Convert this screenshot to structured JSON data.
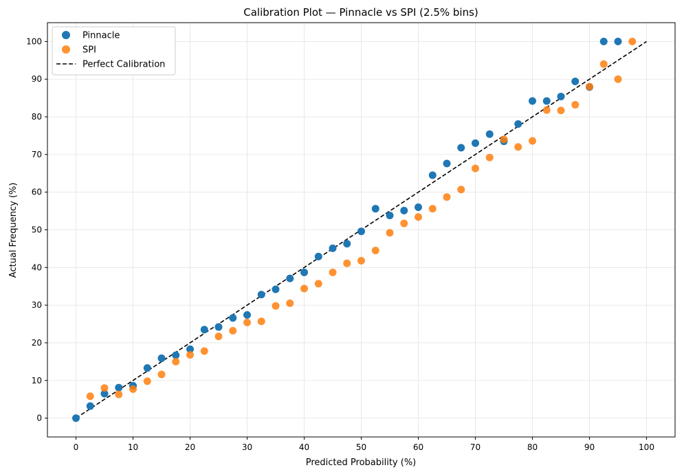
{
  "chart_data": {
    "type": "scatter",
    "title": "Calibration Plot — Pinnacle vs SPI (2.5% bins)",
    "xlabel": "Predicted Probability (%)",
    "ylabel": "Actual Frequency (%)",
    "xlim": [
      -5,
      105
    ],
    "ylim": [
      -5,
      105
    ],
    "xticks": [
      0,
      10,
      20,
      30,
      40,
      50,
      60,
      70,
      80,
      90,
      100
    ],
    "yticks": [
      0,
      10,
      20,
      30,
      40,
      50,
      60,
      70,
      80,
      90,
      100
    ],
    "grid": true,
    "legend_position": "top-left",
    "series": [
      {
        "name": "Pinnacle",
        "color": "#1f77b4",
        "points": [
          [
            0,
            0
          ],
          [
            2.5,
            3.2
          ],
          [
            5,
            6.5
          ],
          [
            7.5,
            8.1
          ],
          [
            10,
            8.6
          ],
          [
            12.5,
            13.3
          ],
          [
            15,
            15.9
          ],
          [
            17.5,
            16.7
          ],
          [
            20,
            18.3
          ],
          [
            22.5,
            23.5
          ],
          [
            25,
            24.2
          ],
          [
            27.5,
            26.6
          ],
          [
            30,
            27.4
          ],
          [
            32.5,
            32.8
          ],
          [
            35,
            34.2
          ],
          [
            37.5,
            37.1
          ],
          [
            40,
            38.7
          ],
          [
            42.5,
            42.9
          ],
          [
            45,
            45.1
          ],
          [
            47.5,
            46.3
          ],
          [
            50,
            49.6
          ],
          [
            52.5,
            55.6
          ],
          [
            55,
            53.8
          ],
          [
            57.5,
            55.1
          ],
          [
            60,
            56.0
          ],
          [
            62.5,
            64.5
          ],
          [
            65,
            67.6
          ],
          [
            67.5,
            71.8
          ],
          [
            70,
            73.0
          ],
          [
            72.5,
            75.4
          ],
          [
            75,
            73.5
          ],
          [
            77.5,
            78.1
          ],
          [
            80,
            84.2
          ],
          [
            82.5,
            84.2
          ],
          [
            85,
            85.4
          ],
          [
            87.5,
            89.4
          ],
          [
            90,
            87.9
          ],
          [
            92.5,
            100
          ],
          [
            95,
            100
          ]
        ]
      },
      {
        "name": "SPI",
        "color": "#ff7f0e",
        "points": [
          [
            2.5,
            5.8
          ],
          [
            5,
            8.0
          ],
          [
            7.5,
            6.3
          ],
          [
            10,
            7.7
          ],
          [
            12.5,
            9.8
          ],
          [
            15,
            11.6
          ],
          [
            17.5,
            15.0
          ],
          [
            20,
            16.8
          ],
          [
            22.5,
            17.8
          ],
          [
            25,
            21.7
          ],
          [
            27.5,
            23.2
          ],
          [
            30,
            25.4
          ],
          [
            32.5,
            25.7
          ],
          [
            35,
            29.8
          ],
          [
            37.5,
            30.5
          ],
          [
            40,
            34.4
          ],
          [
            42.5,
            35.7
          ],
          [
            45,
            38.7
          ],
          [
            47.5,
            41.1
          ],
          [
            50,
            41.8
          ],
          [
            52.5,
            44.5
          ],
          [
            55,
            49.2
          ],
          [
            57.5,
            51.7
          ],
          [
            60,
            53.4
          ],
          [
            62.5,
            55.6
          ],
          [
            65,
            58.7
          ],
          [
            67.5,
            60.7
          ],
          [
            70,
            66.3
          ],
          [
            72.5,
            69.2
          ],
          [
            75,
            74.0
          ],
          [
            77.5,
            72.0
          ],
          [
            80,
            73.6
          ],
          [
            82.5,
            81.8
          ],
          [
            85,
            81.7
          ],
          [
            87.5,
            83.2
          ],
          [
            90,
            88.0
          ],
          [
            92.5,
            94.0
          ],
          [
            95,
            90.0
          ],
          [
            97.5,
            100
          ]
        ]
      }
    ],
    "reference_line": {
      "name": "Perfect Calibration",
      "color": "#000000",
      "style": "dashed",
      "points": [
        [
          0,
          0
        ],
        [
          100,
          100
        ]
      ]
    }
  }
}
